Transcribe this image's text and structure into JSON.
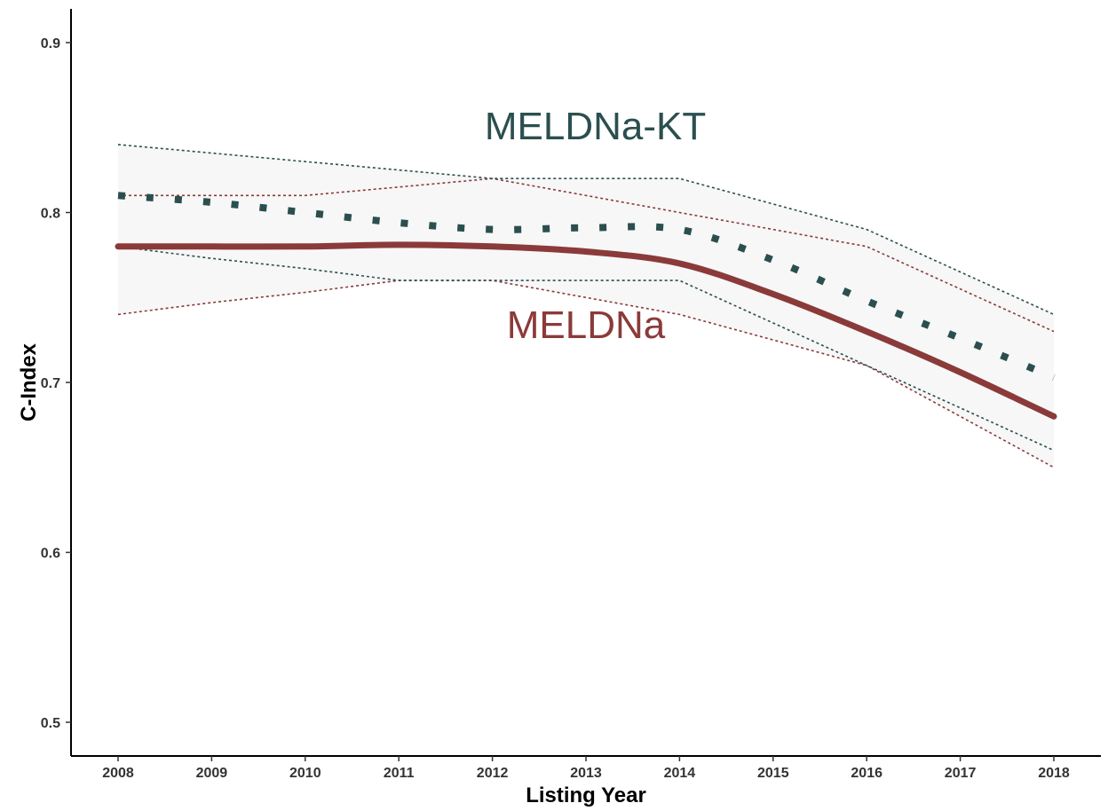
{
  "chart_data": {
    "type": "line",
    "title": "",
    "xlabel": "Listing Year",
    "ylabel": "C-Index",
    "x": [
      2008,
      2009,
      2010,
      2011,
      2012,
      2013,
      2014,
      2015,
      2016,
      2017,
      2018
    ],
    "xlim": [
      2007.5,
      2018.5
    ],
    "ylim": [
      0.48,
      0.922
    ],
    "yticks": [
      "0.5",
      "0.6",
      "0.7",
      "0.8",
      "0.9"
    ],
    "grid": false,
    "legend": "none",
    "colors": {
      "meldna": "#8b3a3a",
      "meldna_kt": "#2b4f4f",
      "band_fill": "#f7f7f7",
      "axis": "#000000"
    },
    "series": [
      {
        "name": "MELDNa",
        "style": "solid",
        "color": "#8b3a3a",
        "values": [
          0.78,
          0.78,
          0.78,
          0.781,
          0.78,
          0.777,
          0.77,
          0.752,
          0.73,
          0.706,
          0.68
        ],
        "lower": [
          0.74,
          0.747,
          0.753,
          0.76,
          0.76,
          0.75,
          0.74,
          0.725,
          0.71,
          0.68,
          0.65
        ],
        "upper": [
          0.81,
          0.81,
          0.81,
          0.815,
          0.82,
          0.81,
          0.8,
          0.79,
          0.78,
          0.755,
          0.73
        ]
      },
      {
        "name": "MELDNa-KT",
        "style": "dotted",
        "color": "#2b4f4f",
        "values": [
          0.81,
          0.806,
          0.8,
          0.794,
          0.79,
          0.791,
          0.79,
          0.772,
          0.748,
          0.726,
          0.703
        ],
        "lower": [
          0.78,
          0.773,
          0.767,
          0.76,
          0.76,
          0.76,
          0.76,
          0.735,
          0.71,
          0.685,
          0.66
        ],
        "upper": [
          0.84,
          0.835,
          0.83,
          0.825,
          0.82,
          0.82,
          0.82,
          0.805,
          0.79,
          0.765,
          0.74
        ]
      }
    ],
    "annotations": [
      {
        "text": "MELDNa-KT",
        "x": 2013.1,
        "y": 0.843,
        "color": "#2b4f4f"
      },
      {
        "text": "MELDNa",
        "x": 2013.0,
        "y": 0.726,
        "color": "#8b3a3a"
      }
    ]
  }
}
